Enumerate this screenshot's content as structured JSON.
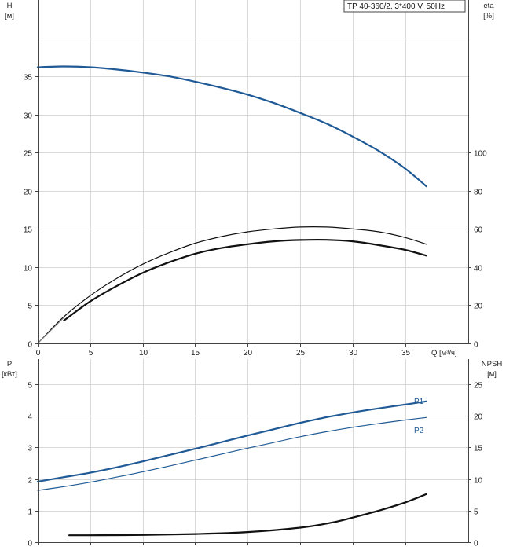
{
  "colors": {
    "blue": "#1f5a96",
    "black": "#111111",
    "grid": "#d9d9d9"
  },
  "chart_data": [
    {
      "type": "line",
      "title_box": "TP 40-360/2, 3*400 V, 50Hz",
      "x_axis": {
        "label": "Q [м³/ч]",
        "min": 0,
        "max": 41,
        "ticks": [
          0,
          5,
          10,
          15,
          20,
          25,
          30,
          35
        ],
        "tick_labels": [
          "0",
          "5",
          "10",
          "15",
          "20",
          "25",
          "30",
          "35"
        ]
      },
      "y_left": {
        "label_line1": "H",
        "label_line2": "[м]",
        "min": 0,
        "max": 45,
        "ticks": [
          0,
          5,
          10,
          15,
          20,
          25,
          30,
          35
        ],
        "tick_labels": [
          "0",
          "5",
          "10",
          "15",
          "20",
          "25",
          "30",
          "35"
        ]
      },
      "y_right": {
        "label_line1": "eta",
        "label_line2": "[%]",
        "min": 0,
        "max": 180,
        "ticks": [
          0,
          20,
          40,
          60,
          80,
          100
        ],
        "tick_labels": [
          "0",
          "20",
          "40",
          "60",
          "80",
          "100"
        ]
      },
      "grid": true,
      "series": [
        {
          "axis": "left",
          "color": "#1f5a96",
          "width": 2.2,
          "x": [
            0,
            2.5,
            5,
            7.5,
            10,
            12.5,
            15,
            17.5,
            20,
            22.5,
            25,
            27.5,
            30,
            32.5,
            35,
            37
          ],
          "y": [
            36.2,
            36.3,
            36.2,
            35.9,
            35.5,
            35.0,
            34.3,
            33.5,
            32.6,
            31.5,
            30.2,
            28.8,
            27.1,
            25.2,
            22.9,
            20.6
          ]
        },
        {
          "axis": "right",
          "color": "#111111",
          "width": 1.2,
          "x": [
            0,
            2.5,
            5,
            7.5,
            10,
            12.5,
            15,
            17.5,
            20,
            22.5,
            25,
            27.5,
            30,
            32.5,
            35,
            37
          ],
          "y": [
            0,
            14,
            25,
            34,
            41.5,
            47.5,
            52.5,
            56,
            58.5,
            60,
            61,
            61,
            60,
            58.5,
            55.5,
            52
          ]
        },
        {
          "axis": "right",
          "color": "#111111",
          "width": 2.2,
          "x": [
            2.5,
            5,
            7.5,
            10,
            12.5,
            15,
            17.5,
            20,
            22.5,
            25,
            27.5,
            30,
            32.5,
            35,
            37
          ],
          "y": [
            12,
            22,
            30,
            37,
            42.5,
            47,
            50,
            52,
            53.5,
            54.2,
            54.3,
            53.5,
            51.5,
            49,
            46
          ]
        },
        {
          "axis": "left",
          "color": "#7a7a7a",
          "width": 1,
          "x": [
            0,
            2.5
          ],
          "y": [
            0,
            3.4
          ]
        }
      ]
    },
    {
      "type": "line",
      "x_axis": {
        "min": 0,
        "max": 41,
        "ticks": [
          0,
          5,
          10,
          15,
          20,
          25,
          30,
          35
        ]
      },
      "y_left": {
        "label_line1": "P",
        "label_line2": "[кВт]",
        "min": 0,
        "max": 5.8,
        "ticks": [
          0,
          1,
          2,
          3,
          4,
          5
        ],
        "tick_labels": [
          "0",
          "1",
          "2",
          "3",
          "4",
          "5"
        ]
      },
      "y_right": {
        "label_line1": "NPSH",
        "label_line2": "[м]",
        "min": 0,
        "max": 29,
        "ticks": [
          0,
          5,
          10,
          15,
          20,
          25
        ],
        "tick_labels": [
          "0",
          "5",
          "10",
          "15",
          "20",
          "25"
        ]
      },
      "grid": true,
      "series": [
        {
          "name": "P1",
          "axis": "left",
          "color": "#1f5a96",
          "width": 2.2,
          "x": [
            0,
            2.5,
            5,
            7.5,
            10,
            12.5,
            15,
            17.5,
            20,
            22.5,
            25,
            27.5,
            30,
            32.5,
            35,
            37
          ],
          "y": [
            1.92,
            2.06,
            2.2,
            2.37,
            2.56,
            2.76,
            2.96,
            3.17,
            3.38,
            3.58,
            3.78,
            3.96,
            4.11,
            4.24,
            4.36,
            4.46
          ]
        },
        {
          "name": "P2",
          "axis": "left",
          "color": "#1f5a96",
          "width": 1.2,
          "x": [
            0,
            2.5,
            5,
            7.5,
            10,
            12.5,
            15,
            17.5,
            20,
            22.5,
            25,
            27.5,
            30,
            32.5,
            35,
            37
          ],
          "y": [
            1.64,
            1.76,
            1.9,
            2.06,
            2.23,
            2.41,
            2.6,
            2.79,
            2.98,
            3.16,
            3.34,
            3.5,
            3.64,
            3.76,
            3.87,
            3.95
          ]
        },
        {
          "axis": "right",
          "color": "#111111",
          "width": 2.2,
          "x": [
            3,
            5,
            10,
            15,
            20,
            25,
            28,
            30,
            32.5,
            35,
            37
          ],
          "y": [
            1.1,
            1.1,
            1.15,
            1.3,
            1.6,
            2.3,
            3.1,
            3.9,
            5.0,
            6.3,
            7.6
          ]
        }
      ]
    }
  ]
}
